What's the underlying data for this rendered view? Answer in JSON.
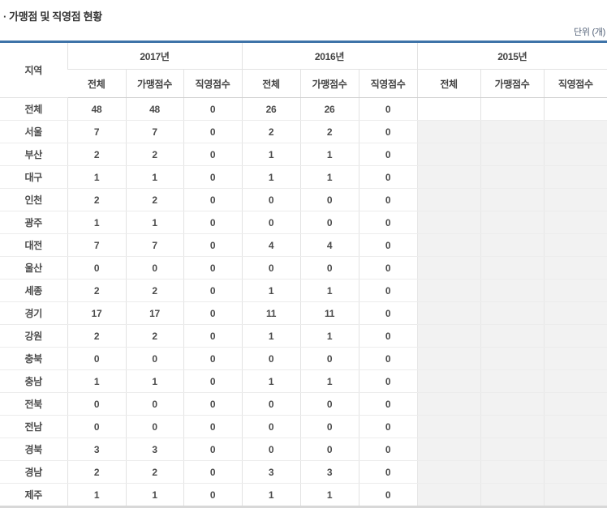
{
  "page": {
    "bullet": "·",
    "title": "가맹점 및 직영점 현황",
    "unit_label": "단위 (개)"
  },
  "colors": {
    "accent_blue": "#3e73a8",
    "empty_cell_gray": "#f2f2f2"
  },
  "table": {
    "region_header": "지역",
    "year_groups": [
      {
        "label": "2017년",
        "columns": [
          "전체",
          "가맹점수",
          "직영점수"
        ]
      },
      {
        "label": "2016년",
        "columns": [
          "전체",
          "가맹점수",
          "직영점수"
        ]
      },
      {
        "label": "2015년",
        "columns": [
          "전체",
          "가맹점수",
          "직영점수"
        ]
      }
    ],
    "rows": [
      {
        "region": "전체",
        "y2017": [
          "48",
          "48",
          "0"
        ],
        "y2016": [
          "26",
          "26",
          "0"
        ],
        "y2015": [
          "",
          "",
          ""
        ]
      },
      {
        "region": "서울",
        "y2017": [
          "7",
          "7",
          "0"
        ],
        "y2016": [
          "2",
          "2",
          "0"
        ],
        "y2015": [
          "",
          "",
          ""
        ]
      },
      {
        "region": "부산",
        "y2017": [
          "2",
          "2",
          "0"
        ],
        "y2016": [
          "1",
          "1",
          "0"
        ],
        "y2015": [
          "",
          "",
          ""
        ]
      },
      {
        "region": "대구",
        "y2017": [
          "1",
          "1",
          "0"
        ],
        "y2016": [
          "1",
          "1",
          "0"
        ],
        "y2015": [
          "",
          "",
          ""
        ]
      },
      {
        "region": "인천",
        "y2017": [
          "2",
          "2",
          "0"
        ],
        "y2016": [
          "0",
          "0",
          "0"
        ],
        "y2015": [
          "",
          "",
          ""
        ]
      },
      {
        "region": "광주",
        "y2017": [
          "1",
          "1",
          "0"
        ],
        "y2016": [
          "0",
          "0",
          "0"
        ],
        "y2015": [
          "",
          "",
          ""
        ]
      },
      {
        "region": "대전",
        "y2017": [
          "7",
          "7",
          "0"
        ],
        "y2016": [
          "4",
          "4",
          "0"
        ],
        "y2015": [
          "",
          "",
          ""
        ]
      },
      {
        "region": "울산",
        "y2017": [
          "0",
          "0",
          "0"
        ],
        "y2016": [
          "0",
          "0",
          "0"
        ],
        "y2015": [
          "",
          "",
          ""
        ]
      },
      {
        "region": "세종",
        "y2017": [
          "2",
          "2",
          "0"
        ],
        "y2016": [
          "1",
          "1",
          "0"
        ],
        "y2015": [
          "",
          "",
          ""
        ]
      },
      {
        "region": "경기",
        "y2017": [
          "17",
          "17",
          "0"
        ],
        "y2016": [
          "11",
          "11",
          "0"
        ],
        "y2015": [
          "",
          "",
          ""
        ]
      },
      {
        "region": "강원",
        "y2017": [
          "2",
          "2",
          "0"
        ],
        "y2016": [
          "1",
          "1",
          "0"
        ],
        "y2015": [
          "",
          "",
          ""
        ]
      },
      {
        "region": "충북",
        "y2017": [
          "0",
          "0",
          "0"
        ],
        "y2016": [
          "0",
          "0",
          "0"
        ],
        "y2015": [
          "",
          "",
          ""
        ]
      },
      {
        "region": "충남",
        "y2017": [
          "1",
          "1",
          "0"
        ],
        "y2016": [
          "1",
          "1",
          "0"
        ],
        "y2015": [
          "",
          "",
          ""
        ]
      },
      {
        "region": "전북",
        "y2017": [
          "0",
          "0",
          "0"
        ],
        "y2016": [
          "0",
          "0",
          "0"
        ],
        "y2015": [
          "",
          "",
          ""
        ]
      },
      {
        "region": "전남",
        "y2017": [
          "0",
          "0",
          "0"
        ],
        "y2016": [
          "0",
          "0",
          "0"
        ],
        "y2015": [
          "",
          "",
          ""
        ]
      },
      {
        "region": "경북",
        "y2017": [
          "3",
          "3",
          "0"
        ],
        "y2016": [
          "0",
          "0",
          "0"
        ],
        "y2015": [
          "",
          "",
          ""
        ]
      },
      {
        "region": "경남",
        "y2017": [
          "2",
          "2",
          "0"
        ],
        "y2016": [
          "3",
          "3",
          "0"
        ],
        "y2015": [
          "",
          "",
          ""
        ]
      },
      {
        "region": "제주",
        "y2017": [
          "1",
          "1",
          "0"
        ],
        "y2016": [
          "1",
          "1",
          "0"
        ],
        "y2015": [
          "",
          "",
          ""
        ]
      }
    ]
  }
}
